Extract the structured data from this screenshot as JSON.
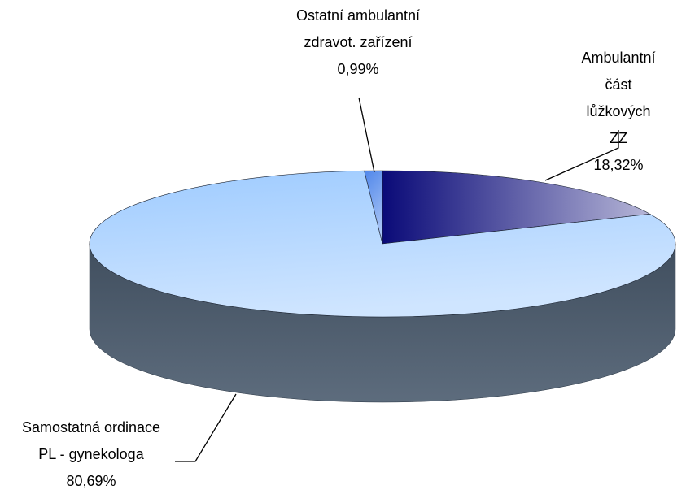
{
  "chart_data": {
    "type": "pie3d",
    "categories": [
      "Ambulantní část\nlůžkových ZZ",
      "Samostatná ordinace\nPL - gynekologa",
      "Ostatní ambulantní\nzdravot. zařízení"
    ],
    "values": [
      18.32,
      80.69,
      0.99
    ],
    "value_labels": [
      "18,32%",
      "80,69%",
      "0,99%"
    ],
    "colors": [
      "#0a0a78",
      "#9ecbff",
      "#4f86ea"
    ],
    "side_color": "#4b5c6e"
  }
}
